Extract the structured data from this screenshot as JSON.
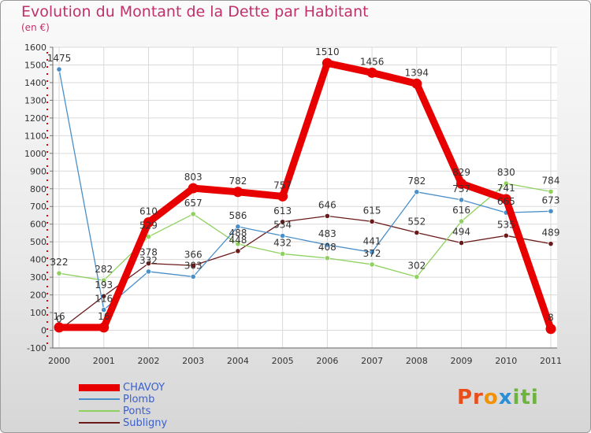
{
  "chart_data": {
    "type": "line",
    "title": "Evolution du Montant de la Dette par Habitant",
    "subtitle": "(en €)",
    "x": [
      "2000",
      "2001",
      "2002",
      "2003",
      "2004",
      "2005",
      "2006",
      "2007",
      "2008",
      "2009",
      "2010",
      "2011"
    ],
    "ylim": [
      -100,
      1600
    ],
    "yticks": [
      -100,
      0,
      100,
      200,
      300,
      400,
      500,
      600,
      700,
      800,
      900,
      1000,
      1100,
      1200,
      1300,
      1400,
      1500,
      1600
    ],
    "grid": true,
    "legend_position": "bottom-left",
    "series": [
      {
        "name": "Subligny",
        "color": "#6b1a1a",
        "values": [
          0,
          193,
          378,
          366,
          448,
          613,
          646,
          615,
          552,
          494,
          535,
          489
        ],
        "labels": [
          "0",
          "193",
          "378",
          "366",
          "448",
          "613",
          "646",
          "615",
          "552",
          "494",
          "535",
          "489"
        ]
      },
      {
        "name": "Ponts",
        "color": "#8fd15e",
        "values": [
          322,
          282,
          529,
          657,
          488,
          432,
          408,
          372,
          302,
          616,
          830,
          784
        ],
        "labels": [
          "322",
          "282",
          "529",
          "657",
          "488",
          "432",
          "408",
          "372",
          "302",
          "616",
          "830",
          "784"
        ]
      },
      {
        "name": "Plomb",
        "color": "#4a8fc8",
        "values": [
          1475,
          116,
          332,
          303,
          586,
          534,
          483,
          441,
          782,
          737,
          665,
          673
        ],
        "labels": [
          "1475",
          "116",
          "332",
          "303",
          "586",
          "534",
          "483",
          "441",
          "782",
          "737",
          "665",
          "673"
        ]
      },
      {
        "name": "CHAVOY",
        "color": "#e80000",
        "values": [
          16,
          16,
          610,
          803,
          782,
          757,
          1510,
          1456,
          1394,
          829,
          741,
          8
        ],
        "labels": [
          "16",
          "16",
          "610",
          "803",
          "782",
          "757",
          "1510",
          "1456",
          "1394",
          "829",
          "741",
          "8"
        ]
      }
    ]
  },
  "legend": {
    "items": [
      {
        "name": "CHAVOY",
        "color": "#e80000",
        "text_color": "#3a5fcd"
      },
      {
        "name": "Plomb",
        "color": "#4a8fc8",
        "text_color": "#3a5fcd"
      },
      {
        "name": "Ponts",
        "color": "#8fd15e",
        "text_color": "#3a5fcd"
      },
      {
        "name": "Subligny",
        "color": "#6b1a1a",
        "text_color": "#3a5fcd"
      }
    ]
  },
  "logo": {
    "text": "Proxiti"
  }
}
